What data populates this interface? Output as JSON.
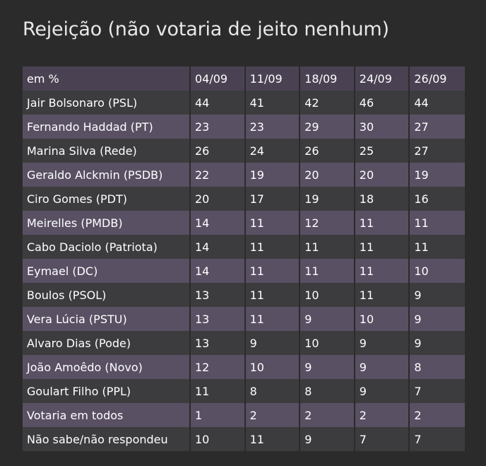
{
  "chart_data": {
    "type": "table",
    "title": "Rejeição (não votaria de jeito nenhum)",
    "columns": [
      "em %",
      "04/09",
      "11/09",
      "18/09",
      "24/09",
      "26/09"
    ],
    "rows": [
      {
        "name": "Jair Bolsonaro (PSL)",
        "values": [
          44,
          41,
          42,
          46,
          44
        ]
      },
      {
        "name": "Fernando Haddad (PT)",
        "values": [
          23,
          23,
          29,
          30,
          27
        ]
      },
      {
        "name": "Marina Silva (Rede)",
        "values": [
          26,
          24,
          26,
          25,
          27
        ]
      },
      {
        "name": "Geraldo Alckmin (PSDB)",
        "values": [
          22,
          19,
          20,
          20,
          19
        ]
      },
      {
        "name": "Ciro Gomes (PDT)",
        "values": [
          20,
          17,
          19,
          18,
          16
        ]
      },
      {
        "name": "Meirelles (PMDB)",
        "values": [
          14,
          11,
          12,
          11,
          11
        ]
      },
      {
        "name": "Cabo Daciolo (Patriota)",
        "values": [
          14,
          11,
          11,
          11,
          11
        ]
      },
      {
        "name": "Eymael (DC)",
        "values": [
          14,
          11,
          11,
          11,
          10
        ]
      },
      {
        "name": "Boulos (PSOL)",
        "values": [
          13,
          11,
          10,
          11,
          9
        ]
      },
      {
        "name": "Vera Lúcia (PSTU)",
        "values": [
          13,
          11,
          9,
          10,
          9
        ]
      },
      {
        "name": "Alvaro Dias (Pode)",
        "values": [
          13,
          9,
          10,
          9,
          9
        ]
      },
      {
        "name": "João Amoêdo (Novo)",
        "values": [
          12,
          10,
          9,
          9,
          8
        ]
      },
      {
        "name": "Goulart Filho (PPL)",
        "values": [
          11,
          8,
          8,
          9,
          7
        ]
      },
      {
        "name": "Votaria em todos",
        "values": [
          1,
          2,
          2,
          2,
          2
        ]
      },
      {
        "name": "Não sabe/não respondeu",
        "values": [
          10,
          11,
          9,
          7,
          7
        ]
      }
    ]
  },
  "colors": {
    "background": "#2b2b2b",
    "header": "#4a4252",
    "row_dark": "#3c3c3e",
    "row_light": "#595063",
    "text": "#ffffff"
  }
}
